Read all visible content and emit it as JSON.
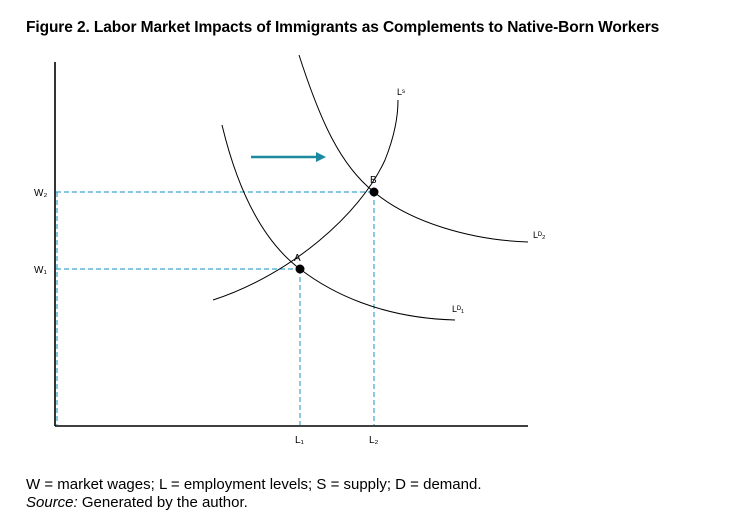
{
  "title": "Figure 2. Labor Market Impacts of Immigrants as Complements to Native-Born Workers",
  "labels": {
    "w1": "W₁",
    "w2": "W₂",
    "l1": "L₁",
    "l2": "L₂",
    "point_a": "A",
    "point_b": "B",
    "supply": "Lˢ",
    "demand1": "Lᴰ₁",
    "demand2": "Lᴰ₂"
  },
  "note": "W = market wages; L = employment levels; S = supply; D = demand.",
  "source_label": "Source:",
  "source_text": " Generated by the author.",
  "colors": {
    "curve": "#000000",
    "dashed": "#3ea6cf",
    "arrow": "#1b8aa0"
  }
}
